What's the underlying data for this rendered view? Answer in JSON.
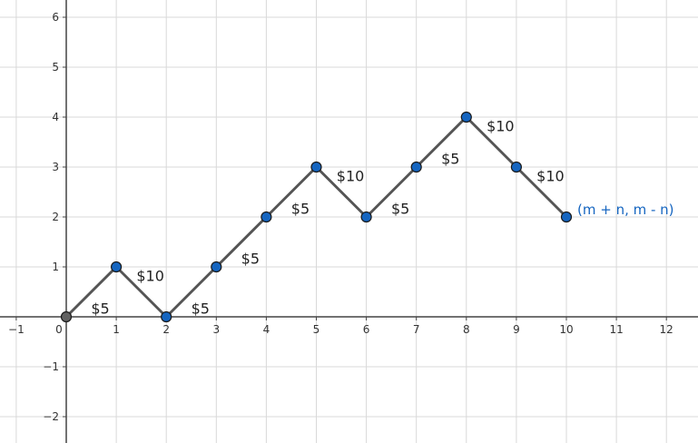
{
  "chart_data": {
    "type": "line",
    "title": "",
    "xlabel": "",
    "ylabel": "",
    "xlim": [
      -1,
      12
    ],
    "ylim": [
      -2,
      6
    ],
    "grid": true,
    "x_ticks": [
      "−1",
      "0",
      "1",
      "2",
      "3",
      "4",
      "5",
      "6",
      "7",
      "8",
      "9",
      "10",
      "11",
      "12"
    ],
    "y_ticks": [
      "−2",
      "−1",
      "1",
      "2",
      "3",
      "4",
      "5",
      "6"
    ],
    "series": [
      {
        "x": [
          0,
          1,
          2,
          3,
          4,
          5,
          6,
          7,
          8,
          9,
          10
        ],
        "y": [
          0,
          1,
          0,
          1,
          2,
          3,
          2,
          3,
          4,
          3,
          2
        ]
      }
    ],
    "segment_labels": [
      "$5",
      "$10",
      "$5",
      "$5",
      "$5",
      "$10",
      "$5",
      "$5",
      "$10",
      "$10"
    ],
    "end_label": "(m + n, m - n)",
    "colors": {
      "line": "#555555",
      "point_fill": "#1565c0",
      "origin_fill": "#616161",
      "end_label": "#1565c0",
      "grid": "#d9d9d9",
      "axis": "#444444"
    }
  }
}
